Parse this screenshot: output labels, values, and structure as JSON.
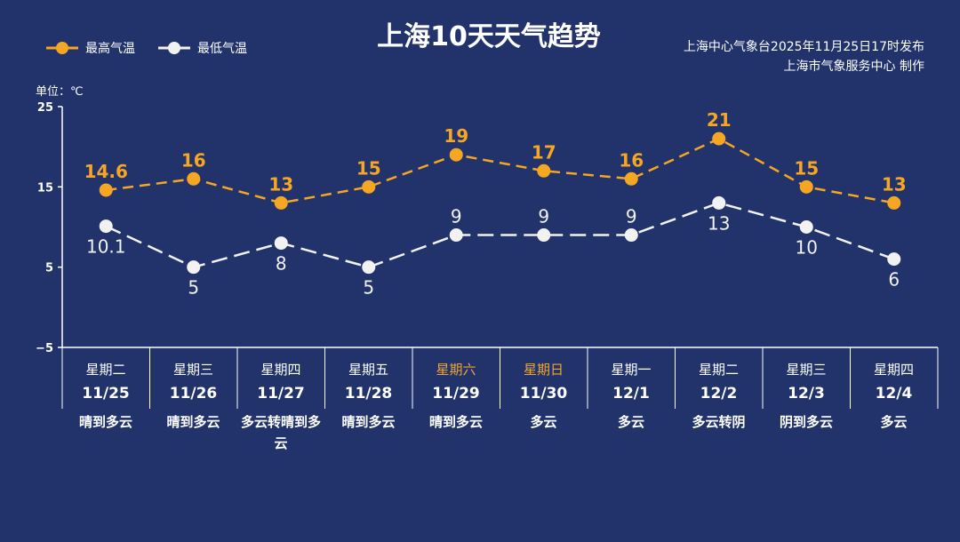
{
  "chart_data": {
    "type": "line",
    "title": "上海10天天气趋势",
    "unit_label": "单位：℃",
    "source_lines": [
      "上海中心气象台2025年11月25日17时发布",
      "上海市气象服务中心  制作"
    ],
    "ylim": [
      -5,
      25
    ],
    "yticks": [
      "25",
      "15",
      "5",
      "−5"
    ],
    "grid": false,
    "legend_position": "top-left",
    "weekdays": [
      "星期二",
      "星期三",
      "星期四",
      "星期五",
      "星期六",
      "星期日",
      "星期一",
      "星期二",
      "星期三",
      "星期四"
    ],
    "weekend_color": "#f0a531",
    "weekend_flags": [
      false,
      false,
      false,
      false,
      true,
      true,
      false,
      false,
      false,
      false
    ],
    "categories": [
      "11/25",
      "11/26",
      "11/27",
      "11/28",
      "11/29",
      "11/30",
      "12/1",
      "12/2",
      "12/3",
      "12/4"
    ],
    "conditions": [
      "晴到多云",
      "晴到多云",
      "多云转晴到多云",
      "晴到多云",
      "晴到多云",
      "多云",
      "多云",
      "多云转阴",
      "阴到多云",
      "多云"
    ],
    "series": [
      {
        "name": "最高气温",
        "color": "#f5a623",
        "values": [
          14.6,
          16,
          13,
          15,
          19,
          17,
          16,
          21,
          15,
          13
        ],
        "labels": [
          "14.6",
          "16",
          "13",
          "15",
          "19",
          "17",
          "16",
          "21",
          "15",
          "13"
        ]
      },
      {
        "name": "最低气温",
        "color": "#f2f2f2",
        "values": [
          10.1,
          5,
          8,
          5,
          9,
          9,
          9,
          13,
          10,
          6
        ],
        "labels": [
          "10.1",
          "5",
          "8",
          "5",
          "9",
          "9",
          "9",
          "13",
          "10",
          "6"
        ]
      }
    ]
  }
}
